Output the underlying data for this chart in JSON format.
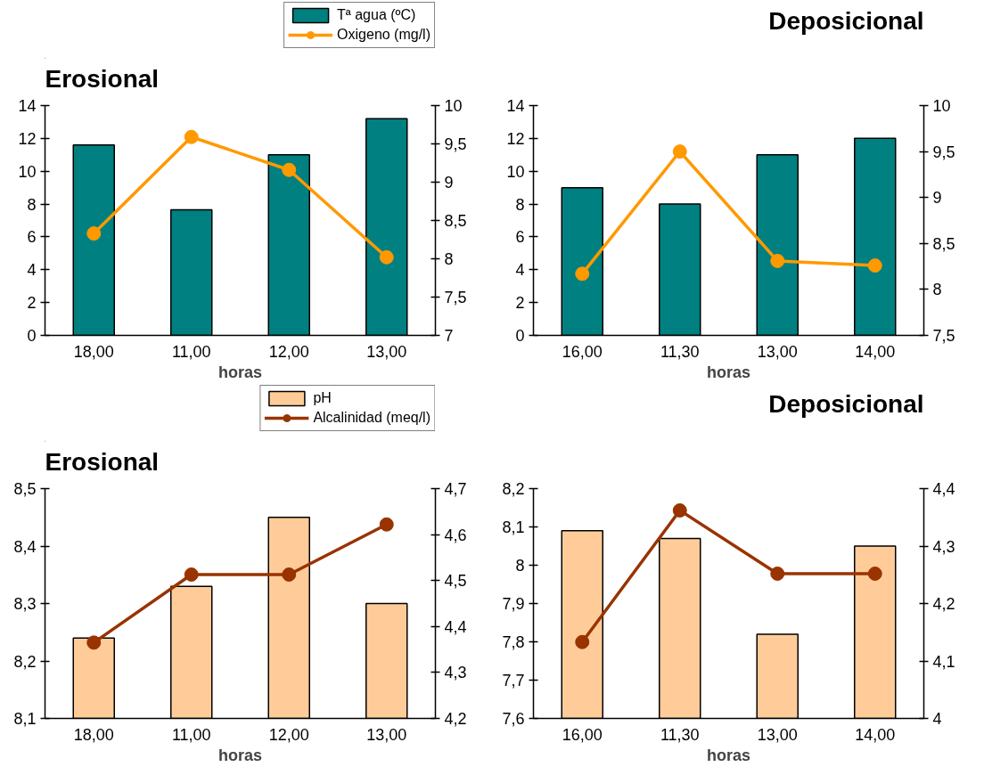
{
  "chart_data": [
    {
      "type": "bar",
      "title": "Erosional",
      "xlabel": "horas",
      "categories": [
        "18,00",
        "11,00",
        "12,00",
        "13,00"
      ],
      "series": [
        {
          "name": "Tª agua (ºC)",
          "color": "#008080",
          "values": [
            11.6,
            7.65,
            11.0,
            13.2
          ]
        },
        {
          "name": "Oxigeno (mg/l)",
          "type": "line",
          "axis": "y2",
          "marker": "circle",
          "color": "#ff9900",
          "values": [
            8.33,
            9.59,
            9.16,
            8.02
          ]
        }
      ],
      "ylim": [
        0,
        14
      ],
      "yticks": [
        0,
        2,
        4,
        6,
        8,
        10,
        12,
        14
      ],
      "y2lim": [
        7,
        10
      ],
      "y2ticks": [
        7,
        {
          "value": 7.5,
          "label": "7,5"
        },
        8,
        {
          "value": 8.5,
          "label": "8,5"
        },
        9,
        {
          "value": 9.5,
          "label": "9,5"
        },
        10
      ],
      "legend": "top right"
    },
    {
      "type": "bar",
      "title": "Deposicional",
      "xlabel": "horas",
      "categories": [
        "16,00",
        "11,30",
        "13,00",
        "14,00"
      ],
      "series": [
        {
          "color": "#008080",
          "values": [
            9,
            8,
            11,
            12
          ]
        },
        {
          "type": "line",
          "axis": "y2",
          "marker": "circle",
          "color": "#ff9900",
          "values": [
            8.17,
            9.5,
            8.31,
            8.26
          ]
        }
      ],
      "ylim": [
        0,
        14
      ],
      "yticks": [
        0,
        2,
        4,
        6,
        8,
        10,
        12,
        14
      ],
      "y2lim": [
        7.5,
        10
      ],
      "y2ticks": [
        {
          "value": 7.5,
          "label": "7,5"
        },
        8,
        {
          "value": 8.5,
          "label": "8,5"
        },
        9,
        {
          "value": 9.5,
          "label": "9,5"
        },
        10
      ]
    },
    {
      "type": "bar",
      "title": "Erosional",
      "xlabel": "horas",
      "categories": [
        "18,00",
        "11,00",
        "12,00",
        "13,00"
      ],
      "series": [
        {
          "name": "pH",
          "color": "#ffcc99",
          "values": [
            8.24,
            8.33,
            8.45,
            8.3
          ]
        },
        {
          "name": "Alcalinidad (meq/l)",
          "type": "line",
          "axis": "y2",
          "marker": "circle",
          "color": "#993300",
          "values": [
            4.365,
            4.513,
            4.513,
            4.622
          ]
        }
      ],
      "ylim": [
        8.1,
        8.5
      ],
      "yticks": [
        {
          "value": 8.1,
          "label": "8,1"
        },
        {
          "value": 8.2,
          "label": "8,2"
        },
        {
          "value": 8.3,
          "label": "8,3"
        },
        {
          "value": 8.4,
          "label": "8,4"
        },
        {
          "value": 8.5,
          "label": "8,5"
        }
      ],
      "y2lim": [
        4.2,
        4.7
      ],
      "y2ticks": [
        {
          "value": 4.2,
          "label": "4,2"
        },
        {
          "value": 4.3,
          "label": "4,3"
        },
        {
          "value": 4.4,
          "label": "4,4"
        },
        {
          "value": 4.5,
          "label": "4,5"
        },
        {
          "value": 4.6,
          "label": "4,6"
        },
        {
          "value": 4.7,
          "label": "4,7"
        }
      ],
      "legend": "top right"
    },
    {
      "type": "bar",
      "title": "Deposicional",
      "xlabel": "horas",
      "categories": [
        "16,00",
        "11,30",
        "13,00",
        "14,00"
      ],
      "series": [
        {
          "color": "#ffcc99",
          "values": [
            8.09,
            8.07,
            7.82,
            8.05
          ]
        },
        {
          "type": "line",
          "axis": "y2",
          "marker": "circle",
          "color": "#993300",
          "values": [
            4.133,
            4.362,
            4.252,
            4.252
          ]
        }
      ],
      "ylim": [
        7.6,
        8.2
      ],
      "yticks": [
        {
          "value": 7.6,
          "label": "7,6"
        },
        {
          "value": 7.7,
          "label": "7,7"
        },
        {
          "value": 7.8,
          "label": "7,8"
        },
        {
          "value": 7.9,
          "label": "7,9"
        },
        8,
        {
          "value": 8.1,
          "label": "8,1"
        },
        {
          "value": 8.2,
          "label": "8,2"
        }
      ],
      "y2lim": [
        4,
        4.4
      ],
      "y2ticks": [
        4,
        {
          "value": 4.1,
          "label": "4,1"
        },
        {
          "value": 4.2,
          "label": "4,2"
        },
        {
          "value": 4.3,
          "label": "4,3"
        },
        {
          "value": 4.4,
          "label": "4,4"
        }
      ]
    }
  ]
}
